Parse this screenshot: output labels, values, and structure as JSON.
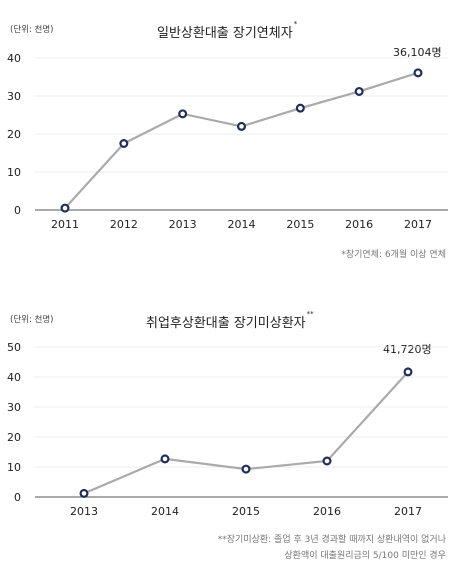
{
  "chart_data": [
    {
      "type": "line",
      "unit_label": "(단위: 천명)",
      "title": "일반상환대출 장기연체자",
      "title_mark": "*",
      "categories": [
        "2011",
        "2012",
        "2013",
        "2014",
        "2015",
        "2016",
        "2017"
      ],
      "series": [
        {
          "values": [
            0.5,
            17.5,
            25.3,
            22.0,
            26.8,
            31.2,
            36.1
          ]
        }
      ],
      "yticks": [
        "0",
        "10",
        "20",
        "30",
        "40"
      ],
      "ylim": [
        0,
        40
      ],
      "grid": true,
      "annotation": "36,104명",
      "footnote": [
        "*장기연체: 6개월 이상 연체"
      ],
      "line_color": "#aaaaaa",
      "marker_color": "#1f2d5a"
    },
    {
      "type": "line",
      "unit_label": "(단위: 천명)",
      "title": "취업후상환대출 장기미상환자",
      "title_mark": "**",
      "categories": [
        "2013",
        "2014",
        "2015",
        "2016",
        "2017"
      ],
      "series": [
        {
          "values": [
            1.2,
            12.7,
            9.3,
            12.0,
            41.7
          ]
        }
      ],
      "yticks": [
        "0",
        "10",
        "20",
        "30",
        "40",
        "50"
      ],
      "ylim": [
        0,
        50
      ],
      "grid": true,
      "annotation": "41,720명",
      "footnote": [
        "**장기미상환: 졸업 후 3년 경과할 때까지 상환내역이 없거나",
        "상환액이 대출원리금의 5/100 미만인 경우"
      ],
      "line_color": "#aaaaaa",
      "marker_color": "#1f2d5a"
    }
  ]
}
